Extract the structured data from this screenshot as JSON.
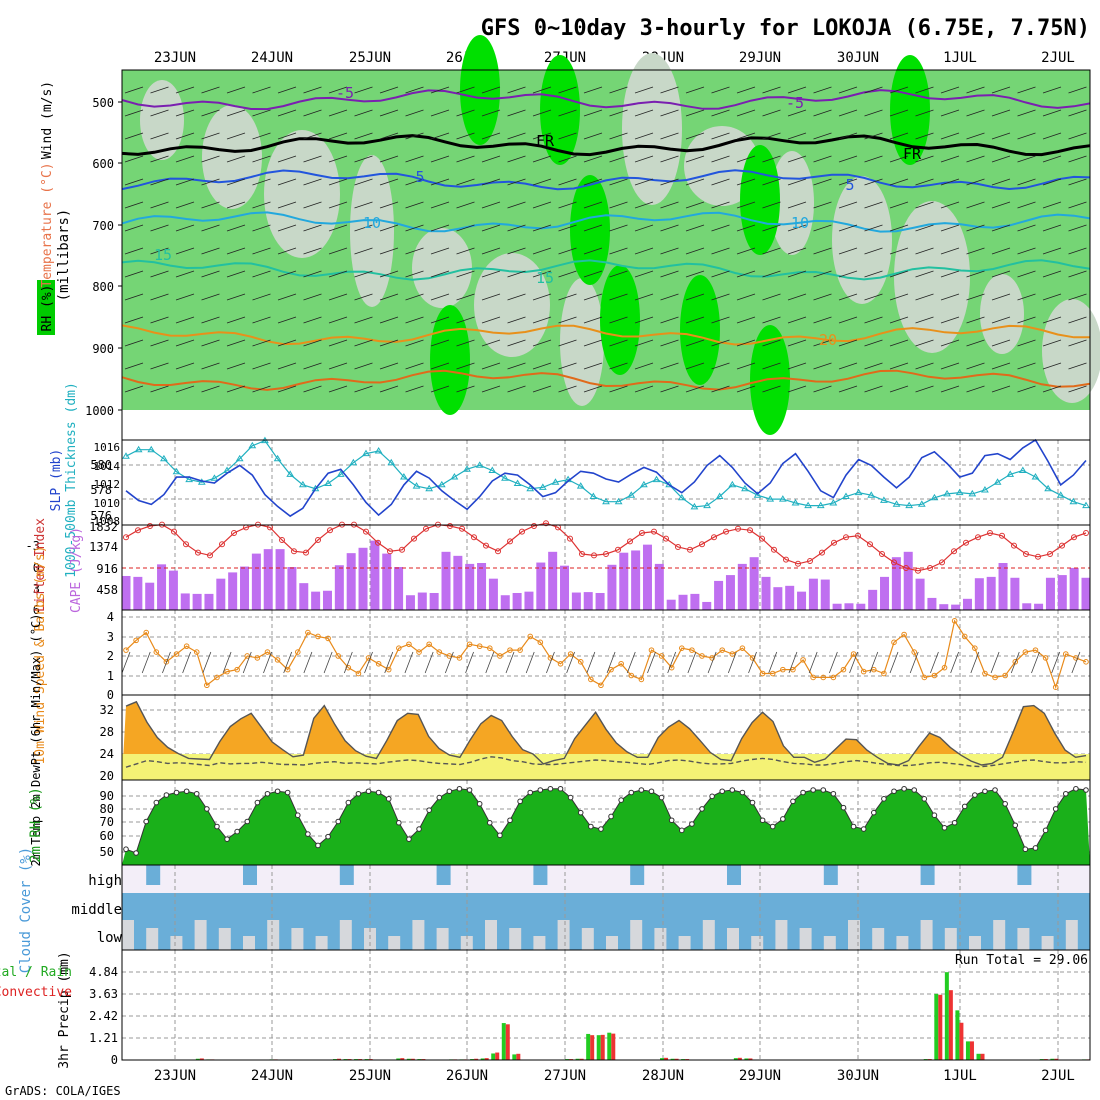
{
  "chart_data": {
    "type": "meteogram",
    "title": "GFS 0~10day 3-hourly for LOKOJA (6.75E, 7.75N)",
    "footer": "GrADS: COLA/IGES",
    "dates": [
      "23JUN",
      "24JUN",
      "25JUN",
      "26JUN",
      "27JUN",
      "28JUN",
      "29JUN",
      "30JUN",
      "1JUL",
      "2JUL"
    ],
    "panels": {
      "upper_air": {
        "ylabel": "(millibars)",
        "ylabel_parts": {
          "rh": "RH (%)",
          "temp": "Temperature (°C)",
          "wind": "Wind (m/s)"
        },
        "pressure_ticks": [
          "500",
          "600",
          "700",
          "800",
          "900",
          "1000"
        ],
        "contour_labels": [
          "-5",
          "-5",
          "FR",
          "FR",
          "5",
          "5",
          "10",
          "10",
          "15",
          "15",
          "20"
        ]
      },
      "pressure": {
        "ylabel_left": "1000-500mb Thickness (dm)",
        "ylabel_right": "SLP (mb)",
        "thickness_ticks": [
          "580",
          "578",
          "576"
        ],
        "slp_ticks": [
          "1016",
          "1014",
          "1012",
          "1010",
          "1008"
        ],
        "thickness": [
          580.6,
          581.1,
          581.1,
          580.4,
          579.4,
          578.8,
          578.6,
          578.9,
          579.5,
          580.4,
          581.4,
          581.8,
          580.4,
          579.2,
          578.4,
          578.1,
          578.5,
          579.2,
          580.1,
          580.8,
          581.0,
          580.1,
          579.0,
          578.3,
          578.1,
          578.4,
          579.0,
          579.6,
          579.9,
          579.5,
          578.9,
          578.5,
          578.1,
          578.2,
          578.6,
          578.8,
          578.3,
          577.5,
          577.1,
          577.1,
          577.6,
          578.4,
          578.8,
          578.4,
          577.4,
          576.7,
          576.8,
          577.5,
          578.4,
          578.1,
          577.6,
          577.3,
          577.3,
          577.0,
          576.8,
          576.8,
          577.0,
          577.5,
          577.8,
          577.6,
          577.2,
          576.9,
          576.8,
          576.9,
          577.4,
          577.7,
          577.8,
          577.7,
          578.0,
          578.6,
          579.2,
          579.5,
          579.0,
          578.1,
          577.6,
          577.1,
          576.8
        ],
        "slp": [
          1011.0,
          1010.0,
          1009.6,
          1010.6,
          1012.4,
          1012.4,
          1012.0,
          1011.8,
          1012.8,
          1013.6,
          1012.6,
          1010.6,
          1009.4,
          1008.4,
          1009.2,
          1011.2,
          1012.8,
          1013.2,
          1011.6,
          1009.8,
          1008.5,
          1009.6,
          1011.6,
          1013.0,
          1012.3,
          1011.0,
          1010.0,
          1009.1,
          1010.4,
          1012.0,
          1012.8,
          1012.6,
          1011.6,
          1010.4,
          1010.8,
          1012.0,
          1013.0,
          1012.8,
          1012.2,
          1011.9,
          1012.7,
          1013.4,
          1012.9,
          1011.6,
          1010.8,
          1011.9,
          1013.6,
          1014.6,
          1013.4,
          1011.8,
          1010.7,
          1011.8,
          1013.8,
          1014.8,
          1013.0,
          1011.0,
          1010.3,
          1012.6,
          1014.2,
          1013.6,
          1012.4,
          1011.3,
          1012.4,
          1014.4,
          1015.0,
          1013.8,
          1012.4,
          1012.8,
          1014.6,
          1014.8,
          1014.2,
          1015.4,
          1016.2,
          1014.0,
          1011.6,
          1012.6,
          1014.1
        ]
      },
      "stability": {
        "ylabel_left": "Lifted Index",
        "ylabel_right": "CAPE (J/kg)",
        "li_ticks": [
          "-3",
          "0",
          "3",
          "6"
        ],
        "cape_ticks": [
          "1832",
          "1374",
          "916",
          "458"
        ],
        "lifted_index": [
          -2.2,
          -2.7,
          -3.0,
          -3.1,
          -2.6,
          -1.7,
          -1.1,
          -0.9,
          -1.7,
          -2.5,
          -2.9,
          -3.1,
          -2.9,
          -2.0,
          -1.2,
          -1.1,
          -2.0,
          -2.7,
          -3.1,
          -3.1,
          -2.6,
          -1.8,
          -1.2,
          -1.3,
          -2.1,
          -2.8,
          -3.1,
          -3.0,
          -2.8,
          -2.2,
          -1.6,
          -1.2,
          -1.9,
          -2.6,
          -3.0,
          -3.2,
          -2.9,
          -2.1,
          -1.0,
          -0.9,
          -1.0,
          -1.3,
          -1.9,
          -2.5,
          -2.6,
          -2.1,
          -1.5,
          -1.3,
          -1.7,
          -2.2,
          -2.6,
          -2.8,
          -2.7,
          -2.1,
          -1.3,
          -0.6,
          -0.3,
          -0.5,
          -1.1,
          -1.8,
          -2.2,
          -2.3,
          -1.7,
          -1.0,
          -0.4,
          0.0,
          0.2,
          0.0,
          -0.4,
          -1.2,
          -1.8,
          -2.2,
          -2.5,
          -2.3,
          -1.6,
          -1.0,
          -0.8,
          -1.0,
          -1.6,
          -2.2,
          -2.5
        ],
        "cape": [
          760,
          740,
          610,
          1020,
          880,
          370,
          360,
          360,
          700,
          840,
          970,
          1260,
          1360,
          1360,
          960,
          600,
          410,
          430,
          1000,
          1270,
          1390,
          1550,
          1260,
          960,
          330,
          390,
          380,
          1300,
          1210,
          1030,
          1050,
          700,
          330,
          380,
          410,
          1060,
          1300,
          990,
          390,
          400,
          380,
          1010,
          1280,
          1330,
          1460,
          1030,
          230,
          340,
          360,
          180,
          650,
          780,
          1030,
          1180,
          740,
          510,
          540,
          410,
          700,
          680,
          140,
          150,
          140,
          450,
          740,
          1180,
          1300,
          700,
          270,
          130,
          120,
          250,
          710,
          740,
          1050,
          720,
          150,
          140,
          720,
          780,
          940,
          720
        ]
      },
      "wind10m": {
        "ylabel": "10m Wind Speed & Barbs (m/s)",
        "ticks": [
          "4",
          "3",
          "2",
          "1",
          "0"
        ],
        "speed": [
          2.3,
          2.8,
          3.2,
          2.2,
          1.7,
          2.1,
          2.5,
          2.2,
          0.5,
          0.9,
          1.2,
          1.3,
          2.0,
          1.9,
          2.2,
          1.8,
          1.3,
          2.2,
          3.2,
          3.0,
          2.9,
          2.0,
          1.4,
          1.1,
          1.9,
          1.6,
          1.3,
          2.4,
          2.6,
          2.2,
          2.6,
          2.2,
          2.0,
          1.9,
          2.6,
          2.5,
          2.4,
          2.0,
          2.3,
          2.3,
          3.0,
          2.7,
          1.9,
          1.6,
          2.1,
          1.7,
          0.8,
          0.5,
          1.3,
          1.6,
          1.0,
          0.8,
          2.3,
          2.0,
          1.4,
          2.4,
          2.3,
          2.0,
          1.9,
          2.3,
          2.1,
          2.4,
          1.9,
          1.1,
          1.1,
          1.3,
          1.3,
          1.8,
          0.9,
          0.9,
          0.9,
          1.3,
          2.1,
          1.2,
          1.3,
          1.1,
          2.7,
          3.1,
          2.2,
          0.9,
          1.0,
          1.4,
          3.8,
          3.0,
          2.4,
          1.1,
          0.9,
          1.0,
          1.7,
          2.2,
          2.3,
          1.9,
          0.4,
          2.1,
          1.9,
          1.7
        ]
      },
      "temp2m": {
        "ylabel": "2m Temp 2m DewPt (6hr Min/Max) (°C)",
        "ticks": [
          "32",
          "28",
          "24",
          "20"
        ],
        "temp": [
          32.7,
          33.5,
          29.8,
          27.0,
          25.2,
          24.1,
          23.2,
          23.1,
          23.0,
          26.3,
          29.0,
          30.4,
          31.4,
          28.8,
          26.2,
          24.8,
          23.5,
          23.8,
          30.5,
          32.8,
          29.4,
          26.4,
          24.6,
          23.6,
          23.2,
          26.5,
          30.1,
          31.4,
          31.2,
          27.2,
          25.0,
          23.8,
          23.4,
          26.6,
          29.5,
          31.0,
          30.1,
          27.2,
          24.8,
          24.0,
          22.2,
          22.8,
          23.2,
          26.8,
          29.2,
          31.6,
          28.5,
          26.0,
          24.4,
          23.4,
          23.4,
          27.0,
          28.9,
          30.1,
          28.6,
          26.5,
          24.3,
          23.0,
          22.8,
          26.8,
          29.7,
          31.6,
          29.9,
          25.5,
          23.4,
          23.4,
          22.5,
          23.1,
          24.9,
          26.7,
          26.6,
          24.7,
          23.4,
          22.3,
          22.0,
          22.8,
          25.4,
          27.8,
          27.0,
          25.2,
          23.8,
          22.7,
          22.0,
          22.3,
          23.4,
          27.9,
          32.6,
          32.8,
          31.4,
          27.8,
          24.7,
          23.4,
          23.7
        ],
        "dewpoint": [
          21.6,
          22.2,
          22.8,
          22.6,
          22.3,
          22.4,
          22.3,
          22.1,
          21.9,
          22.4,
          22.2,
          22.3,
          22.3,
          22.5,
          22.3,
          22.1,
          22.1,
          22.0,
          22.3,
          22.5,
          22.6,
          22.3,
          22.4,
          22.3,
          22.2,
          22.5,
          22.7,
          22.9,
          22.8,
          22.5,
          22.3,
          22.2,
          22.1,
          22.5,
          23.1,
          23.5,
          23.3,
          22.8,
          22.6,
          22.2,
          22.1,
          22.1,
          22.3,
          22.5,
          22.7,
          22.9,
          22.8,
          22.6,
          22.5,
          22.3,
          22.1,
          22.4,
          22.8,
          22.9,
          22.7,
          22.4,
          22.2,
          22.2,
          22.3,
          22.7,
          23.0,
          23.2,
          23.0,
          22.6,
          22.3,
          22.2,
          22.0,
          22.0,
          22.3,
          22.6,
          22.8,
          22.6,
          22.3,
          22.1,
          21.9,
          21.9,
          22.1,
          22.4,
          22.5,
          22.3,
          22.1,
          21.8,
          21.7,
          21.9,
          22.2,
          22.5,
          22.8,
          22.9,
          22.6,
          22.4,
          22.4,
          22.6,
          22.5
        ]
      },
      "rh2m": {
        "ylabel": "2m RH (%)",
        "ticks": [
          "90",
          "80",
          "70",
          "60",
          "50"
        ],
        "rh": [
          48,
          45,
          70,
          85,
          91,
          93,
          94,
          92,
          80,
          66,
          56,
          62,
          70,
          85,
          92,
          94,
          93,
          75,
          60,
          51,
          58,
          70,
          85,
          92,
          94,
          93,
          88,
          69,
          56,
          64,
          79,
          89,
          94,
          96,
          95,
          84,
          69,
          59,
          71,
          86,
          93,
          95,
          96,
          96,
          89,
          77,
          66,
          64,
          74,
          87,
          93,
          95,
          94,
          89,
          71,
          63,
          68,
          80,
          90,
          94,
          95,
          93,
          85,
          71,
          66,
          72,
          86,
          93,
          95,
          95,
          92,
          81,
          66,
          64,
          77,
          88,
          94,
          96,
          95,
          88,
          75,
          65,
          69,
          82,
          91,
          94,
          95,
          84,
          67,
          48,
          49,
          63,
          80,
          92,
          96,
          95
        ]
      },
      "cloud": {
        "ylabel": "Cloud Cover (%)",
        "levels": [
          "high",
          "middle",
          "low"
        ]
      },
      "precip": {
        "ylabel": "3hr Precip (mm)",
        "label_total": "Total / Rain",
        "label_conv": "Convective",
        "run_total": "Run Total = 29.06",
        "ticks": [
          "4.84",
          "3.63",
          "2.42",
          "1.21",
          "0"
        ],
        "total": [
          0,
          0,
          0,
          0,
          0,
          0,
          0.02,
          0.08,
          0.04,
          0,
          0,
          0,
          0,
          0,
          0.04,
          0,
          0,
          0,
          0,
          0,
          0.06,
          0.06,
          0.06,
          0.06,
          0,
          0,
          0.1,
          0.08,
          0.06,
          0,
          0,
          0.04,
          0.04,
          0.06,
          0.1,
          0.42,
          2.38,
          0.36,
          0,
          0,
          0,
          0,
          0.06,
          0.08,
          1.68,
          1.6,
          1.76,
          0,
          0,
          0,
          0,
          0.12,
          0.08,
          0.06,
          0,
          0,
          0,
          0,
          0.12,
          0.1,
          0,
          0,
          0,
          0,
          0,
          0,
          0,
          0,
          0,
          0,
          0,
          0,
          0,
          0,
          0,
          0,
          0.06,
          4.26,
          5.66,
          3.2,
          1.2,
          0.4,
          0,
          0,
          0,
          0,
          0,
          0.06,
          0.08,
          0,
          0,
          0.04
        ],
        "convective": [
          0,
          0,
          0,
          0,
          0,
          0,
          0.02,
          0.1,
          0.04,
          0,
          0,
          0,
          0,
          0,
          0.04,
          0,
          0,
          0,
          0,
          0,
          0.08,
          0.06,
          0.06,
          0.06,
          0,
          0,
          0.12,
          0.08,
          0.06,
          0,
          0,
          0.04,
          0.04,
          0.08,
          0.12,
          0.48,
          2.3,
          0.4,
          0,
          0,
          0,
          0,
          0.06,
          0.08,
          1.6,
          1.62,
          1.7,
          0,
          0,
          0,
          0,
          0.14,
          0.08,
          0.06,
          0,
          0,
          0,
          0,
          0.14,
          0.1,
          0,
          0,
          0,
          0,
          0,
          0,
          0,
          0,
          0,
          0,
          0,
          0,
          0,
          0,
          0,
          0,
          0.06,
          4.2,
          4.5,
          2.4,
          1.2,
          0.4,
          0,
          0,
          0,
          0,
          0,
          0.06,
          0.08,
          0,
          0,
          0.04
        ]
      }
    }
  }
}
